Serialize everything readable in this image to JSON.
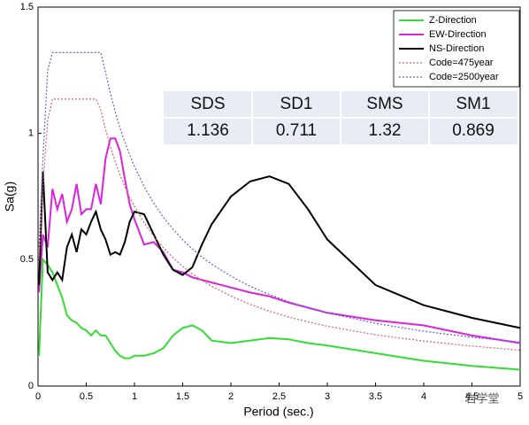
{
  "chart_data": {
    "type": "line",
    "xlabel": "Period (sec.)",
    "ylabel": "Sa(g)",
    "xlim": [
      0,
      5
    ],
    "ylim": [
      0,
      1.5
    ],
    "xticks": [
      0,
      0.5,
      1,
      1.5,
      2,
      2.5,
      3,
      3.5,
      4,
      4.5,
      5
    ],
    "yticks": [
      0,
      0.5,
      1,
      1.5
    ],
    "legend": "upper right",
    "x": [
      0.01,
      0.05,
      0.1,
      0.15,
      0.2,
      0.25,
      0.3,
      0.35,
      0.4,
      0.45,
      0.5,
      0.55,
      0.6,
      0.65,
      0.7,
      0.75,
      0.8,
      0.85,
      0.9,
      0.95,
      1.0,
      1.1,
      1.2,
      1.3,
      1.4,
      1.5,
      1.6,
      1.7,
      1.8,
      2.0,
      2.2,
      2.4,
      2.6,
      2.8,
      3.0,
      3.5,
      4.0,
      4.5,
      5.0
    ],
    "series": [
      {
        "name": "Z-Direction",
        "color": "#33dd33",
        "dashed": false,
        "values": [
          0.12,
          0.5,
          0.48,
          0.45,
          0.4,
          0.35,
          0.28,
          0.26,
          0.25,
          0.23,
          0.22,
          0.2,
          0.22,
          0.2,
          0.2,
          0.17,
          0.14,
          0.12,
          0.11,
          0.11,
          0.12,
          0.12,
          0.13,
          0.15,
          0.2,
          0.23,
          0.24,
          0.22,
          0.18,
          0.17,
          0.18,
          0.19,
          0.185,
          0.17,
          0.16,
          0.13,
          0.1,
          0.08,
          0.065
        ]
      },
      {
        "name": "EW-Direction",
        "color": "#dd22dd",
        "dashed": false,
        "values": [
          0.37,
          0.6,
          0.55,
          0.78,
          0.7,
          0.76,
          0.65,
          0.7,
          0.8,
          0.68,
          0.7,
          0.7,
          0.8,
          0.72,
          0.9,
          0.98,
          0.98,
          0.93,
          0.82,
          0.72,
          0.66,
          0.56,
          0.57,
          0.53,
          0.46,
          0.45,
          0.43,
          0.42,
          0.41,
          0.39,
          0.37,
          0.355,
          0.33,
          0.31,
          0.29,
          0.26,
          0.24,
          0.2,
          0.17
        ]
      },
      {
        "name": "NS-Direction",
        "color": "#000000",
        "dashed": false,
        "values": [
          0.4,
          0.85,
          0.45,
          0.42,
          0.45,
          0.42,
          0.55,
          0.6,
          0.53,
          0.62,
          0.6,
          0.65,
          0.69,
          0.62,
          0.58,
          0.52,
          0.53,
          0.52,
          0.57,
          0.65,
          0.69,
          0.68,
          0.6,
          0.52,
          0.46,
          0.44,
          0.47,
          0.56,
          0.64,
          0.75,
          0.81,
          0.83,
          0.8,
          0.7,
          0.58,
          0.4,
          0.32,
          0.27,
          0.23
        ]
      },
      {
        "name": "Code=475year",
        "color": "#e06060",
        "dashed": true,
        "values": [
          0.5,
          0.79,
          1.05,
          1.136,
          1.136,
          1.136,
          1.136,
          1.136,
          1.136,
          1.136,
          1.136,
          1.136,
          1.136,
          1.094,
          1.016,
          0.948,
          0.889,
          0.836,
          0.79,
          0.748,
          0.711,
          0.646,
          0.593,
          0.547,
          0.508,
          0.474,
          0.444,
          0.418,
          0.395,
          0.356,
          0.323,
          0.296,
          0.273,
          0.254,
          0.237,
          0.203,
          0.178,
          0.158,
          0.142
        ]
      },
      {
        "name": "Code=2500year",
        "color": "#6060e0",
        "dashed": true,
        "values": [
          0.55,
          0.9,
          1.25,
          1.32,
          1.32,
          1.32,
          1.32,
          1.32,
          1.32,
          1.32,
          1.32,
          1.32,
          1.32,
          1.32,
          1.241,
          1.159,
          1.086,
          1.022,
          0.966,
          0.915,
          0.869,
          0.79,
          0.724,
          0.668,
          0.621,
          0.579,
          0.543,
          0.511,
          0.483,
          0.435,
          0.395,
          0.362,
          0.334,
          0.31,
          0.29,
          0.248,
          0.217,
          0.193,
          0.174
        ]
      }
    ],
    "table": {
      "header": [
        "SDS",
        "SD1",
        "SMS",
        "SM1"
      ],
      "rows": [
        [
          "1.136",
          "0.711",
          "1.32",
          "0.869"
        ]
      ]
    },
    "watermark": "岩学堂"
  }
}
